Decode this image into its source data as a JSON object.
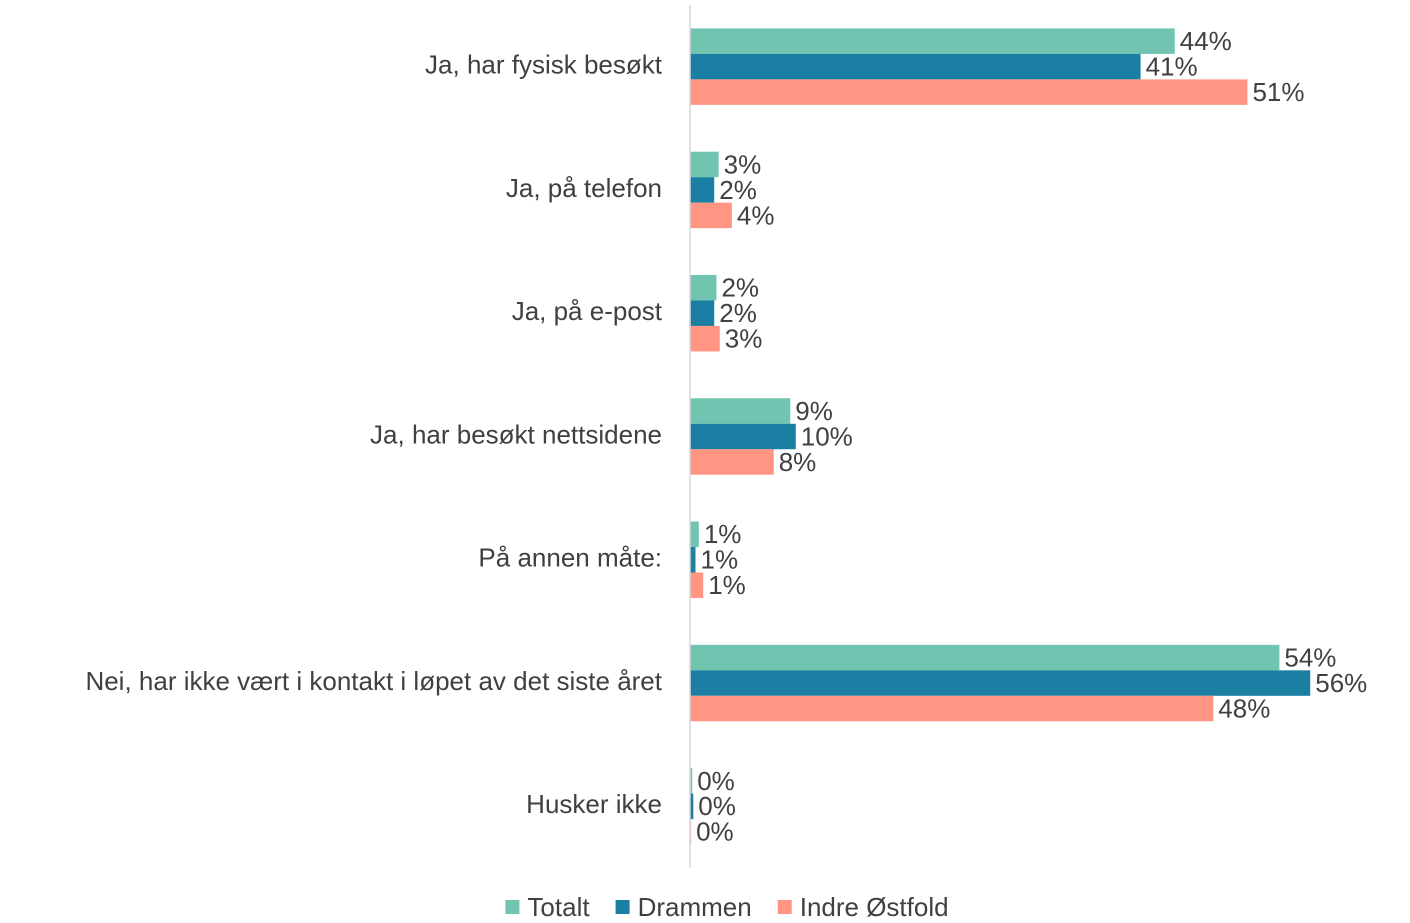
{
  "chart_data": {
    "type": "barh",
    "categories": [
      "Ja, har fysisk besøkt",
      "Ja, på telefon",
      "Ja, på e-post",
      "Ja, har besøkt nettsidene",
      "På annen måte:",
      "Nei, har ikke vært i kontakt i løpet av det siste året",
      "Husker ikke"
    ],
    "series": [
      {
        "name": "Totalt",
        "color": "#70c4b0",
        "values": [
          44.0,
          2.6,
          2.4,
          9.1,
          0.8,
          53.5,
          0.2
        ],
        "value_labels": [
          "44%",
          "3%",
          "2%",
          "9%",
          "1%",
          "54%",
          "0%"
        ]
      },
      {
        "name": "Drammen",
        "color": "#1b7fa3",
        "values": [
          40.9,
          2.2,
          2.2,
          9.6,
          0.5,
          56.3,
          0.3
        ],
        "value_labels": [
          "41%",
          "2%",
          "2%",
          "10%",
          "1%",
          "56%",
          "0%"
        ]
      },
      {
        "name": "Indre Østfold",
        "color": "#ff9582",
        "values": [
          50.6,
          3.8,
          2.7,
          7.6,
          1.2,
          47.5,
          0.1
        ],
        "value_labels": [
          "51%",
          "4%",
          "3%",
          "8%",
          "1%",
          "48%",
          "0%"
        ]
      }
    ],
    "xlim": [
      0,
      60
    ],
    "legend": "bottom"
  }
}
